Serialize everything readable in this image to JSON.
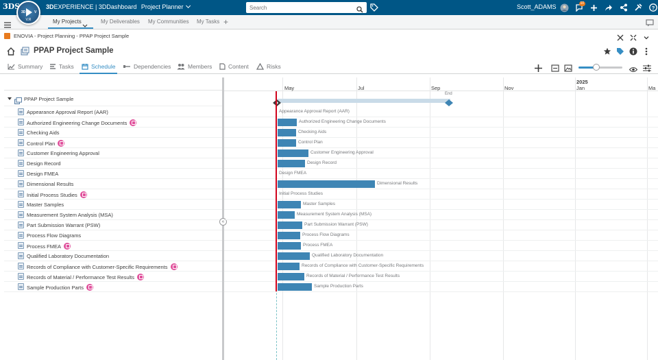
{
  "topbar": {
    "brand": "3DS",
    "compass_version": "V.R",
    "compass_3d": "3D",
    "compass_v": "V",
    "product_bold": "3D",
    "product_rest": "EXPERIENCE | 3DDashboard",
    "app_name": "Project Planner",
    "search_placeholder": "Search",
    "user_name": "Scott_ADAMS",
    "notifications_count": "10",
    "icons": [
      "avatar-icon",
      "notifications-icon",
      "add-icon",
      "share-icon",
      "network-icon",
      "tools-icon",
      "help-icon"
    ]
  },
  "tabs": {
    "items": [
      "My Projects",
      "My Deliverables",
      "My Communities",
      "My Tasks"
    ],
    "active": "My Projects"
  },
  "breadcrumb": {
    "text": "ENOVIA - Project Planning - PPAP Project Sample"
  },
  "page": {
    "title": "PPAP Project Sample"
  },
  "subtabs": {
    "items": [
      "Summary",
      "Tasks",
      "Schedule",
      "Dependencies",
      "Members",
      "Content",
      "Risks"
    ],
    "active": "Schedule"
  },
  "zoom_level": 0.4,
  "gantt": {
    "year": "2025",
    "months": [
      "May",
      "Jul",
      "Sep",
      "Nov",
      "Jan",
      "Ma"
    ],
    "end_label": "End",
    "root_label": "PPAP Project Sample"
  },
  "deliverables": [
    {
      "name": "Appearance Approval Report (AAR)",
      "badge": false
    },
    {
      "name": "Authorized Engineering Change Documents",
      "badge": true
    },
    {
      "name": "Checking Aids",
      "badge": false
    },
    {
      "name": "Control Plan",
      "badge": true
    },
    {
      "name": "Customer Engineering Approval",
      "badge": false
    },
    {
      "name": "Design Record",
      "badge": false
    },
    {
      "name": "Design FMEA",
      "badge": false
    },
    {
      "name": "Dimensional Results",
      "badge": false
    },
    {
      "name": "Initial Process Studies",
      "badge": true
    },
    {
      "name": "Master Samples",
      "badge": false
    },
    {
      "name": "Measurement System Analysis (MSA)",
      "badge": false
    },
    {
      "name": "Part Submission Warrant (PSW)",
      "badge": false
    },
    {
      "name": "Process Flow Diagrams",
      "badge": false
    },
    {
      "name": "Process FMEA",
      "badge": true
    },
    {
      "name": "Qualified Laboratory Documentation",
      "badge": false
    },
    {
      "name": "Records of Compliance with Customer-Specific Requirements",
      "badge": true
    },
    {
      "name": "Records of Material / Performance Test Results",
      "badge": true
    },
    {
      "name": "Sample Production Parts",
      "badge": true
    }
  ],
  "colors": {
    "topbar": "#005686",
    "accent": "#368ec4",
    "bar": "#3e85b4",
    "today": "#d0021b",
    "badge": "#e0519c"
  }
}
